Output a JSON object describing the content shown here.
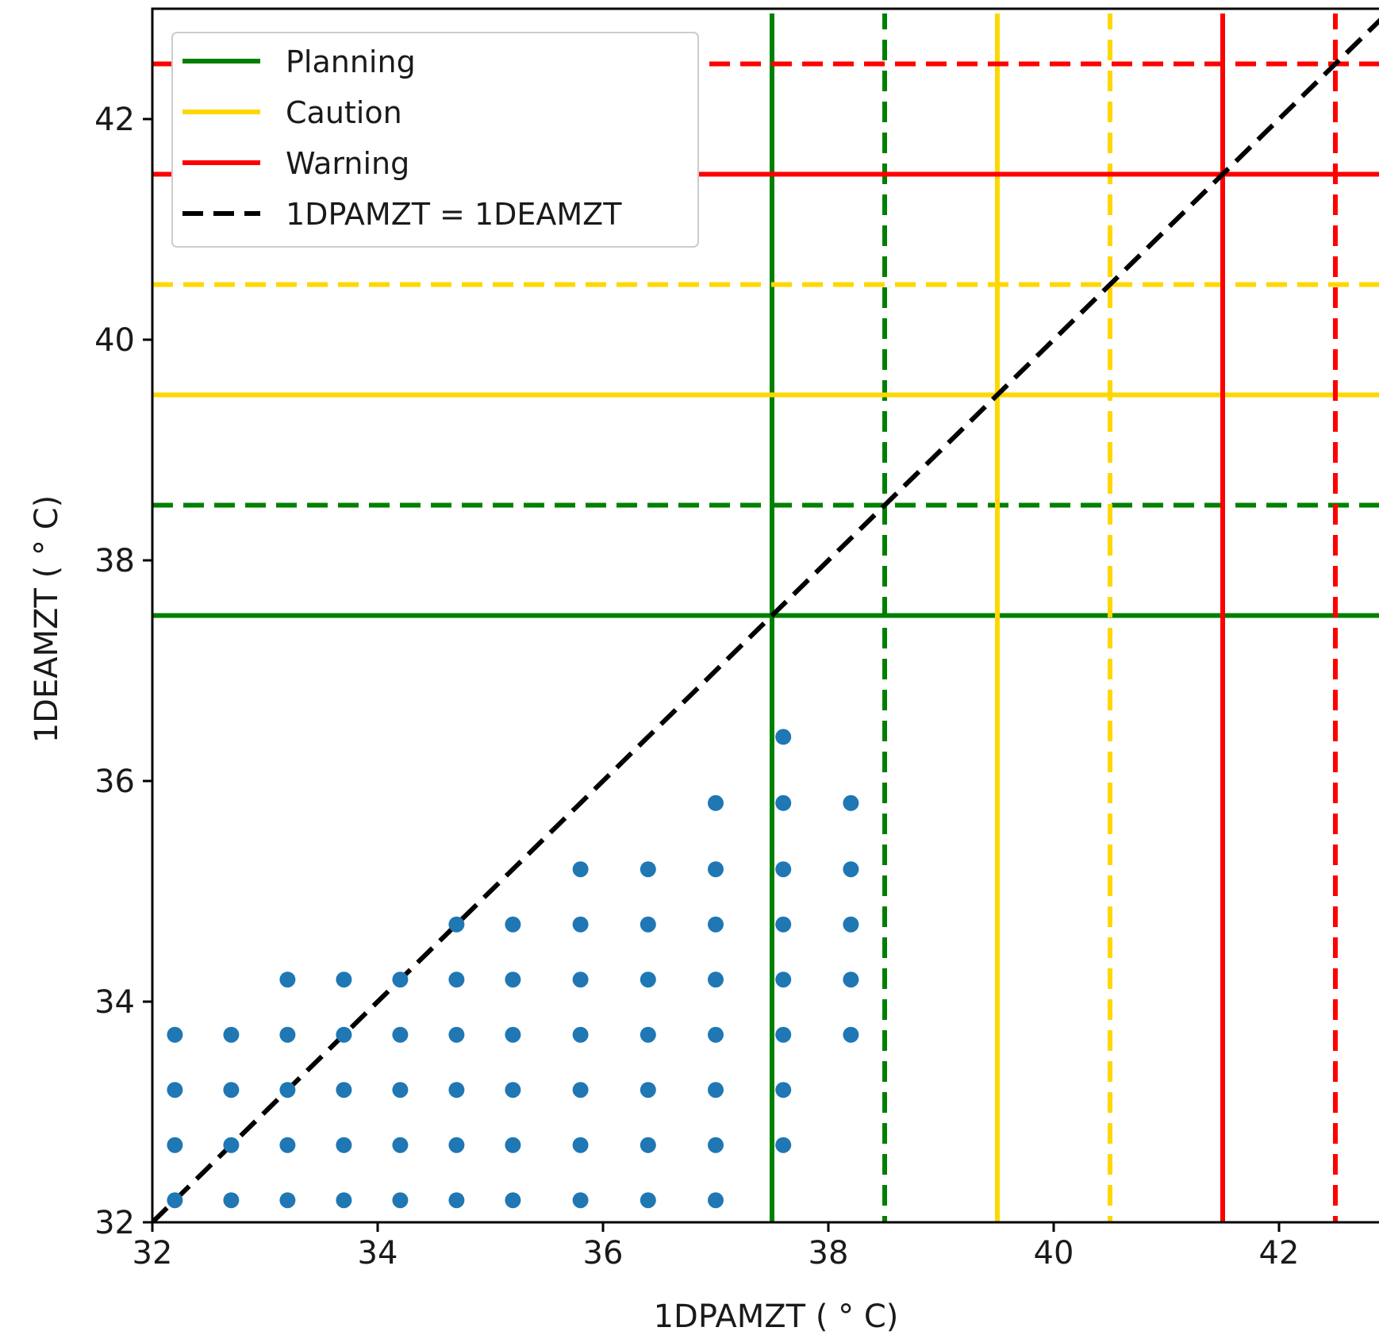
{
  "chart_data": {
    "type": "scatter",
    "xlabel": "1DPAMZT ( ° C)",
    "ylabel": "1DEAMZT ( ° C)",
    "xlim": [
      32,
      43.0
    ],
    "ylim": [
      32,
      43.0
    ],
    "xticks": [
      32,
      34,
      36,
      38,
      40,
      42
    ],
    "yticks": [
      32,
      34,
      36,
      38,
      40,
      42
    ],
    "grid": false,
    "legend_position": "upper-left",
    "legend": [
      {
        "label": "Planning",
        "color": "#008000",
        "style": "solid"
      },
      {
        "label": "Caution",
        "color": "#ffd700",
        "style": "solid"
      },
      {
        "label": "Warning",
        "color": "#ff0000",
        "style": "solid"
      },
      {
        "label": "1DPAMZT = 1DEAMZT",
        "color": "#000000",
        "style": "dashed"
      }
    ],
    "limits": [
      {
        "name": "Planning",
        "color": "#008000",
        "solid": 37.5,
        "dashed": 38.5
      },
      {
        "name": "Caution",
        "color": "#ffd700",
        "solid": 39.5,
        "dashed": 40.5
      },
      {
        "name": "Warning",
        "color": "#ff0000",
        "solid": 41.5,
        "dashed": 42.5
      }
    ],
    "point_color": "#1f77b4",
    "series": [
      {
        "points": [
          [
            32.2,
            32.2
          ],
          [
            32.7,
            32.2
          ],
          [
            33.2,
            32.2
          ],
          [
            33.7,
            32.2
          ],
          [
            34.2,
            32.2
          ],
          [
            34.7,
            32.2
          ],
          [
            35.2,
            32.2
          ],
          [
            35.8,
            32.2
          ],
          [
            36.4,
            32.2
          ],
          [
            37.0,
            32.2
          ],
          [
            32.2,
            32.7
          ],
          [
            32.7,
            32.7
          ],
          [
            33.2,
            32.7
          ],
          [
            33.7,
            32.7
          ],
          [
            34.2,
            32.7
          ],
          [
            34.7,
            32.7
          ],
          [
            35.2,
            32.7
          ],
          [
            35.8,
            32.7
          ],
          [
            36.4,
            32.7
          ],
          [
            37.0,
            32.7
          ],
          [
            37.6,
            32.7
          ],
          [
            32.2,
            33.2
          ],
          [
            32.7,
            33.2
          ],
          [
            33.2,
            33.2
          ],
          [
            33.7,
            33.2
          ],
          [
            34.2,
            33.2
          ],
          [
            34.7,
            33.2
          ],
          [
            35.2,
            33.2
          ],
          [
            35.8,
            33.2
          ],
          [
            36.4,
            33.2
          ],
          [
            37.0,
            33.2
          ],
          [
            37.6,
            33.2
          ],
          [
            32.2,
            33.7
          ],
          [
            32.7,
            33.7
          ],
          [
            33.2,
            33.7
          ],
          [
            33.7,
            33.7
          ],
          [
            34.2,
            33.7
          ],
          [
            34.7,
            33.7
          ],
          [
            35.2,
            33.7
          ],
          [
            35.8,
            33.7
          ],
          [
            36.4,
            33.7
          ],
          [
            37.0,
            33.7
          ],
          [
            37.6,
            33.7
          ],
          [
            38.2,
            33.7
          ],
          [
            33.2,
            34.2
          ],
          [
            33.7,
            34.2
          ],
          [
            34.2,
            34.2
          ],
          [
            34.7,
            34.2
          ],
          [
            35.2,
            34.2
          ],
          [
            35.8,
            34.2
          ],
          [
            36.4,
            34.2
          ],
          [
            37.0,
            34.2
          ],
          [
            37.6,
            34.2
          ],
          [
            38.2,
            34.2
          ],
          [
            34.7,
            34.7
          ],
          [
            35.2,
            34.7
          ],
          [
            35.8,
            34.7
          ],
          [
            36.4,
            34.7
          ],
          [
            37.0,
            34.7
          ],
          [
            37.6,
            34.7
          ],
          [
            38.2,
            34.7
          ],
          [
            35.8,
            35.2
          ],
          [
            36.4,
            35.2
          ],
          [
            37.0,
            35.2
          ],
          [
            37.6,
            35.2
          ],
          [
            38.2,
            35.2
          ],
          [
            37.0,
            35.8
          ],
          [
            37.6,
            35.8
          ],
          [
            38.2,
            35.8
          ],
          [
            37.6,
            36.4
          ]
        ]
      }
    ]
  }
}
